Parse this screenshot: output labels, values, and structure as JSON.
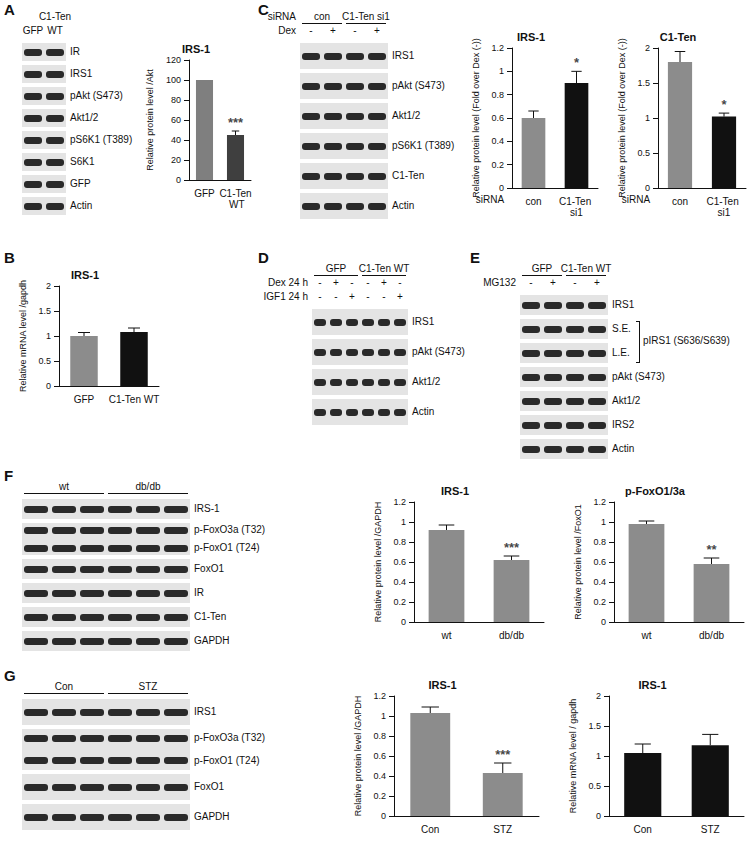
{
  "panels": [
    {
      "label": "A",
      "blot": {
        "lanes": 2,
        "header": [
          {
            "items": [
              {
                "text": "C1-Ten",
                "from": 2,
                "to": 2
              }
            ]
          },
          {
            "items": [
              {
                "text": "GFP",
                "from": 1,
                "to": 1
              },
              {
                "text": "WT",
                "from": 2,
                "to": 2
              }
            ]
          }
        ],
        "rows": [
          {
            "label": "IR"
          },
          {
            "label": "IRS1"
          },
          {
            "label": "pAkt (S473)"
          },
          {
            "label": "Akt1/2"
          },
          {
            "label": "pS6K1 (T389)"
          },
          {
            "label": "S6K1"
          },
          {
            "label": "GFP"
          },
          {
            "label": "Actin"
          }
        ]
      }
    },
    {
      "label": "B"
    },
    {
      "label": "C",
      "blot": {
        "lanes": 4,
        "header": [
          {
            "label": "siRNA",
            "items": [
              {
                "text": "con",
                "from": 1,
                "to": 2
              },
              {
                "text": "C1-Ten si1",
                "from": 3,
                "to": 4
              }
            ]
          },
          {
            "label": "Dex",
            "items": [
              {
                "text": "-",
                "from": 1,
                "to": 1
              },
              {
                "text": "+",
                "from": 2,
                "to": 2
              },
              {
                "text": "-",
                "from": 3,
                "to": 3
              },
              {
                "text": "+",
                "from": 4,
                "to": 4
              }
            ]
          }
        ],
        "rows": [
          {
            "label": "IRS1"
          },
          {
            "label": "pAkt (S473)"
          },
          {
            "label": "Akt1/2"
          },
          {
            "label": "pS6K1 (T389)"
          },
          {
            "label": "C1-Ten"
          },
          {
            "label": "Actin"
          }
        ]
      }
    },
    {
      "label": "D",
      "blot": {
        "lanes": 6,
        "header": [
          {
            "items": [
              {
                "text": "GFP",
                "from": 1,
                "to": 3
              },
              {
                "text": "C1-Ten WT",
                "from": 4,
                "to": 6
              }
            ]
          },
          {
            "label": "Dex 24 h",
            "items": [
              {
                "text": "-",
                "from": 1,
                "to": 1
              },
              {
                "text": "+",
                "from": 2,
                "to": 2
              },
              {
                "text": "-",
                "from": 3,
                "to": 3
              },
              {
                "text": "-",
                "from": 4,
                "to": 4
              },
              {
                "text": "+",
                "from": 5,
                "to": 5
              },
              {
                "text": "-",
                "from": 6,
                "to": 6
              }
            ]
          },
          {
            "label": "IGF1 24 h",
            "items": [
              {
                "text": "-",
                "from": 1,
                "to": 1
              },
              {
                "text": "-",
                "from": 2,
                "to": 2
              },
              {
                "text": "+",
                "from": 3,
                "to": 3
              },
              {
                "text": "-",
                "from": 4,
                "to": 4
              },
              {
                "text": "-",
                "from": 5,
                "to": 5
              },
              {
                "text": "+",
                "from": 6,
                "to": 6
              }
            ]
          }
        ],
        "rows": [
          {
            "label": "IRS1"
          },
          {
            "label": "pAkt (S473)"
          },
          {
            "label": "Akt1/2"
          },
          {
            "label": "Actin"
          }
        ]
      }
    },
    {
      "label": "E",
      "blot": {
        "lanes": 4,
        "header": [
          {
            "items": [
              {
                "text": "GFP",
                "from": 1,
                "to": 2
              },
              {
                "text": "C1-Ten WT",
                "from": 3,
                "to": 4
              }
            ]
          },
          {
            "label": "MG132",
            "items": [
              {
                "text": "-",
                "from": 1,
                "to": 1
              },
              {
                "text": "+",
                "from": 2,
                "to": 2
              },
              {
                "text": "-",
                "from": 3,
                "to": 3
              },
              {
                "text": "+",
                "from": 4,
                "to": 4
              }
            ]
          }
        ],
        "rows": [
          {
            "label": "IRS1"
          },
          {
            "group": "pIRS1 (S636/S639)",
            "rows": [
              {
                "label": "S.E."
              },
              {
                "label": "L.E."
              }
            ]
          },
          {
            "label": "pAkt (S473)"
          },
          {
            "label": "Akt1/2"
          },
          {
            "label": "IRS2"
          },
          {
            "label": "Actin"
          }
        ]
      }
    },
    {
      "label": "F",
      "blot": {
        "lanes": 6,
        "header": [
          {
            "items": [
              {
                "text": "wt",
                "from": 1,
                "to": 3
              },
              {
                "text": "db/db",
                "from": 4,
                "to": 6
              }
            ]
          }
        ],
        "rows": [
          {
            "label": "IRS-1"
          },
          {
            "label": [
              "p-FoxO3a (T32)",
              "p-FoxO1 (T24)"
            ]
          },
          {
            "label": "FoxO1"
          },
          {
            "label": "IR"
          },
          {
            "label": "C1-Ten"
          },
          {
            "label": "GAPDH"
          }
        ]
      }
    },
    {
      "label": "G",
      "blot": {
        "lanes": 6,
        "header": [
          {
            "items": [
              {
                "text": "Con",
                "from": 1,
                "to": 3
              },
              {
                "text": "STZ",
                "from": 4,
                "to": 6
              }
            ]
          }
        ],
        "rows": [
          {
            "label": "IRS1"
          },
          {
            "label": [
              "p-FoxO3a (T32)",
              "p-FoxO1 (T24)"
            ]
          },
          {
            "label": "FoxO1"
          },
          {
            "label": "GAPDH"
          }
        ]
      }
    }
  ],
  "chart_data": [
    {
      "type": "bar",
      "title": "IRS-1",
      "ylabel": "Relative protein level /Akt",
      "categories": [
        "GFP",
        "C1-Ten WT"
      ],
      "values": [
        100,
        45
      ],
      "errors": [
        0,
        4
      ],
      "colors": [
        "#7f7f7f",
        "#3f3f3f"
      ],
      "ylim": [
        0,
        120
      ],
      "yticks": [
        0,
        20,
        40,
        60,
        80,
        100,
        120
      ],
      "grid": false,
      "annotations": [
        {
          "category": "C1-Ten WT",
          "text": "***"
        }
      ]
    },
    {
      "type": "bar",
      "title": "IRS-1",
      "ylabel": "Relative mRNA level /gapdh",
      "categories": [
        "GFP",
        "C1-Ten WT"
      ],
      "values": [
        1,
        1.08
      ],
      "errors": [
        0.07,
        0.08
      ],
      "colors": [
        "#8c8c8c",
        "#111111"
      ],
      "ylim": [
        0,
        2
      ],
      "yticks": [
        0,
        0.5,
        1,
        1.5,
        2
      ],
      "grid": false
    },
    {
      "type": "bar",
      "title": "IRS-1",
      "ylabel": "Relative protein level (Fold over Dex (-))",
      "xlabel": "siRNA",
      "categories": [
        "con",
        "C1-Ten si1"
      ],
      "values": [
        0.6,
        0.9
      ],
      "errors": [
        0.06,
        0.1
      ],
      "colors": [
        "#8c8c8c",
        "#111111"
      ],
      "ylim": [
        0,
        1.2
      ],
      "yticks": [
        0,
        0.2,
        0.4,
        0.6,
        0.8,
        1,
        1.2
      ],
      "grid": false,
      "annotations": [
        {
          "category": "C1-Ten si1",
          "text": "*"
        }
      ]
    },
    {
      "type": "bar",
      "title": "C1-Ten",
      "ylabel": "Relative protein level (Fold over Dex (-))",
      "xlabel": "siRNA",
      "categories": [
        "con",
        "C1-Ten si1"
      ],
      "values": [
        1.8,
        1.02
      ],
      "errors": [
        0.15,
        0.05
      ],
      "colors": [
        "#8c8c8c",
        "#111111"
      ],
      "ylim": [
        0,
        2
      ],
      "yticks": [
        0,
        0.5,
        1,
        1.5,
        2
      ],
      "grid": false,
      "annotations": [
        {
          "category": "C1-Ten si1",
          "text": "*"
        }
      ]
    },
    {
      "type": "bar",
      "title": "IRS-1",
      "ylabel": "Relative protein level /GAPDH",
      "categories": [
        "wt",
        "db/db"
      ],
      "values": [
        0.92,
        0.62
      ],
      "errors": [
        0.05,
        0.04
      ],
      "colors": [
        "#8c8c8c",
        "#8c8c8c"
      ],
      "ylim": [
        0,
        1.2
      ],
      "yticks": [
        0,
        0.2,
        0.4,
        0.6,
        0.8,
        1,
        1.2
      ],
      "grid": false,
      "annotations": [
        {
          "category": "db/db",
          "text": "***"
        }
      ]
    },
    {
      "type": "bar",
      "title": "p-FoxO1/3a",
      "ylabel": "Relative protein level /FoxO1",
      "categories": [
        "wt",
        "db/db"
      ],
      "values": [
        0.98,
        0.58
      ],
      "errors": [
        0.03,
        0.06
      ],
      "colors": [
        "#8c8c8c",
        "#8c8c8c"
      ],
      "ylim": [
        0,
        1.2
      ],
      "yticks": [
        0,
        0.2,
        0.4,
        0.6,
        0.8,
        1,
        1.2
      ],
      "grid": false,
      "annotations": [
        {
          "category": "db/db",
          "text": "**"
        }
      ]
    },
    {
      "type": "bar",
      "title": "IRS-1",
      "ylabel": "Relative protein level /GAPDH",
      "categories": [
        "Con",
        "STZ"
      ],
      "values": [
        1.03,
        0.43
      ],
      "errors": [
        0.06,
        0.1
      ],
      "colors": [
        "#8c8c8c",
        "#8c8c8c"
      ],
      "ylim": [
        0,
        1.2
      ],
      "yticks": [
        0,
        0.2,
        0.4,
        0.6,
        0.8,
        1,
        1.2
      ],
      "grid": false,
      "annotations": [
        {
          "category": "STZ",
          "text": "***"
        }
      ]
    },
    {
      "type": "bar",
      "title": "IRS-1",
      "ylabel": "Relative mRNA level / gapdh",
      "categories": [
        "Con",
        "STZ"
      ],
      "values": [
        1.05,
        1.18
      ],
      "errors": [
        0.15,
        0.18
      ],
      "colors": [
        "#111111",
        "#111111"
      ],
      "ylim": [
        0,
        2
      ],
      "yticks": [
        0,
        0.5,
        1,
        1.5,
        2
      ],
      "grid": false
    }
  ]
}
